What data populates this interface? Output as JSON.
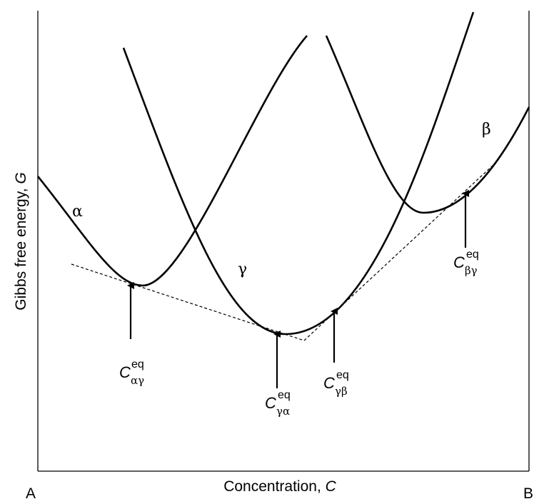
{
  "axes": {
    "y_label": "Gibbs free energy, ",
    "y_var": "G",
    "x_label": "Concentration, ",
    "x_var": "C",
    "left_end": "A",
    "right_end": "B"
  },
  "phases": {
    "alpha": "α",
    "gamma": "γ",
    "beta": "β"
  },
  "markers": [
    {
      "main": "C",
      "sup": "eq",
      "sub": "αγ"
    },
    {
      "main": "C",
      "sup": "eq",
      "sub": "γα"
    },
    {
      "main": "C",
      "sup": "eq",
      "sub": "γβ"
    },
    {
      "main": "C",
      "sup": "eq",
      "sub": "βγ"
    }
  ]
}
